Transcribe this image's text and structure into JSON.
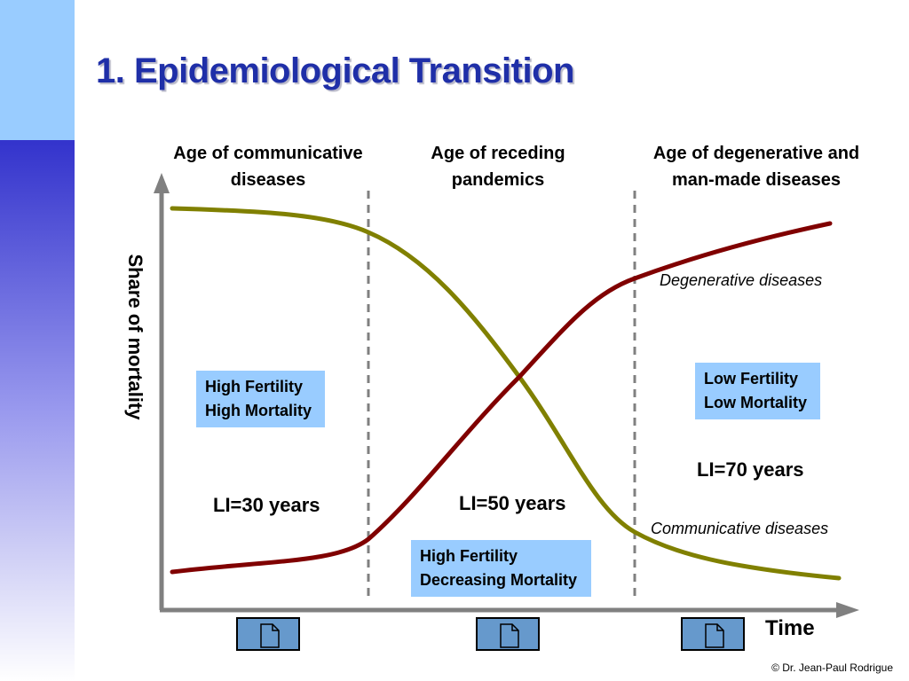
{
  "slide": {
    "title": "1. Epidemiological Transition",
    "copyright": "© Dr. Jean-Paul Rodrigue"
  },
  "eras": [
    {
      "line1": "Age of communicative",
      "line2": "diseases"
    },
    {
      "line1": "Age of receding",
      "line2": "pandemics"
    },
    {
      "line1": "Age of degenerative and",
      "line2": "man-made diseases"
    }
  ],
  "callouts": {
    "stage1": {
      "line1": "High Fertility",
      "line2": "High Mortality"
    },
    "stage2": {
      "line1": "High Fertility",
      "line2": "Decreasing Mortality"
    },
    "stage3": {
      "line1": "Low Fertility",
      "line2": "Low Mortality"
    }
  },
  "life_expectancy": {
    "stage1": "LI=30 years",
    "stage2": "LI=50 years",
    "stage3": "LI=70 years"
  },
  "curve_labels": {
    "degenerative": "Degenerative diseases",
    "communicative": "Communicative diseases"
  },
  "axes": {
    "y": "Share of mortality",
    "x": "Time"
  },
  "colors": {
    "communicative_curve": "#808000",
    "degenerative_curve": "#800000",
    "axis": "#808080",
    "callout_fill": "#99ccff",
    "title": "#1f2fa8",
    "doc_button_fill": "#6699cc"
  },
  "icons": {
    "doc_button": "document-icon"
  }
}
